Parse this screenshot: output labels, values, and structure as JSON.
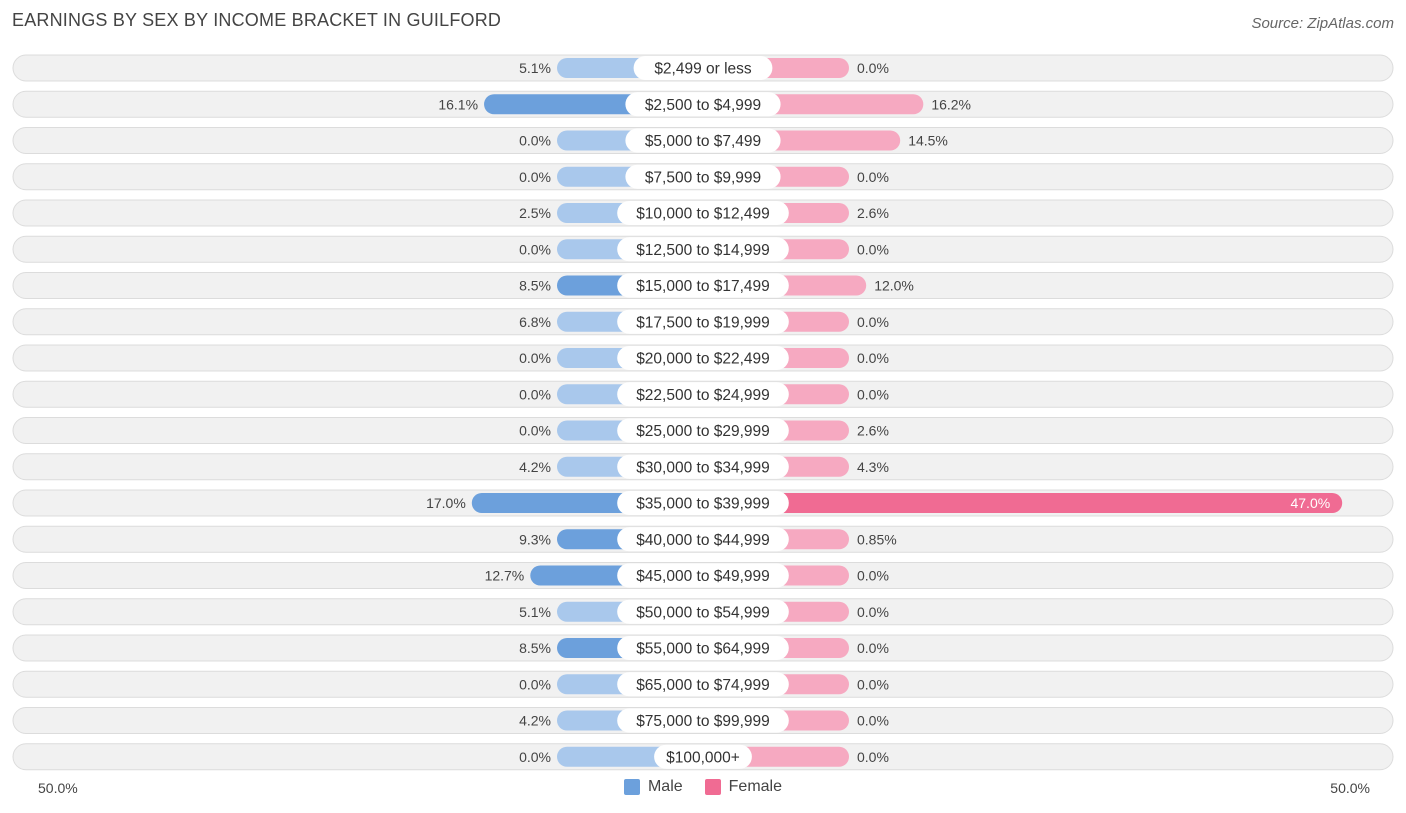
{
  "header": {
    "title": "EARNINGS BY SEX BY INCOME BRACKET IN GUILFORD",
    "source": "Source: ZipAtlas.com"
  },
  "colors": {
    "male": "#6ca0dc",
    "male_light": "#a9c8ec",
    "female": "#f06b93",
    "female_light": "#f6a9c1",
    "row_bg": "#f1f1f1",
    "row_border": "#dcdcdc"
  },
  "chart_data": {
    "type": "bar",
    "orientation": "horizontal-diverging",
    "title": "EARNINGS BY SEX BY INCOME BRACKET IN GUILFORD",
    "xlim": [
      -50,
      50
    ],
    "axis_left_label": "50.0%",
    "axis_right_label": "50.0%",
    "categories": [
      "$2,499 or less",
      "$2,500 to $4,999",
      "$5,000 to $7,499",
      "$7,500 to $9,999",
      "$10,000 to $12,499",
      "$12,500 to $14,999",
      "$15,000 to $17,499",
      "$17,500 to $19,999",
      "$20,000 to $22,499",
      "$22,500 to $24,999",
      "$25,000 to $29,999",
      "$30,000 to $34,999",
      "$35,000 to $39,999",
      "$40,000 to $44,999",
      "$45,000 to $49,999",
      "$50,000 to $54,999",
      "$55,000 to $64,999",
      "$65,000 to $74,999",
      "$75,000 to $99,999",
      "$100,000+"
    ],
    "series": [
      {
        "name": "Male",
        "values": [
          5.1,
          16.1,
          0.0,
          0.0,
          2.5,
          0.0,
          8.5,
          6.8,
          0.0,
          0.0,
          0.0,
          4.2,
          17.0,
          9.3,
          12.7,
          5.1,
          8.5,
          0.0,
          4.2,
          0.0
        ],
        "labels": [
          "5.1%",
          "16.1%",
          "0.0%",
          "0.0%",
          "2.5%",
          "0.0%",
          "8.5%",
          "6.8%",
          "0.0%",
          "0.0%",
          "0.0%",
          "4.2%",
          "17.0%",
          "9.3%",
          "12.7%",
          "5.1%",
          "8.5%",
          "0.0%",
          "4.2%",
          "0.0%"
        ]
      },
      {
        "name": "Female",
        "values": [
          0.0,
          16.2,
          14.5,
          0.0,
          2.6,
          0.0,
          12.0,
          0.0,
          0.0,
          0.0,
          2.6,
          4.3,
          47.0,
          0.85,
          0.0,
          0.0,
          0.0,
          0.0,
          0.0,
          0.0
        ],
        "labels": [
          "0.0%",
          "16.2%",
          "14.5%",
          "0.0%",
          "2.6%",
          "0.0%",
          "12.0%",
          "0.0%",
          "0.0%",
          "0.0%",
          "2.6%",
          "4.3%",
          "47.0%",
          "0.85%",
          "0.0%",
          "0.0%",
          "0.0%",
          "0.0%",
          "0.0%",
          "0.0%"
        ]
      }
    ],
    "legend": [
      "Male",
      "Female"
    ]
  }
}
